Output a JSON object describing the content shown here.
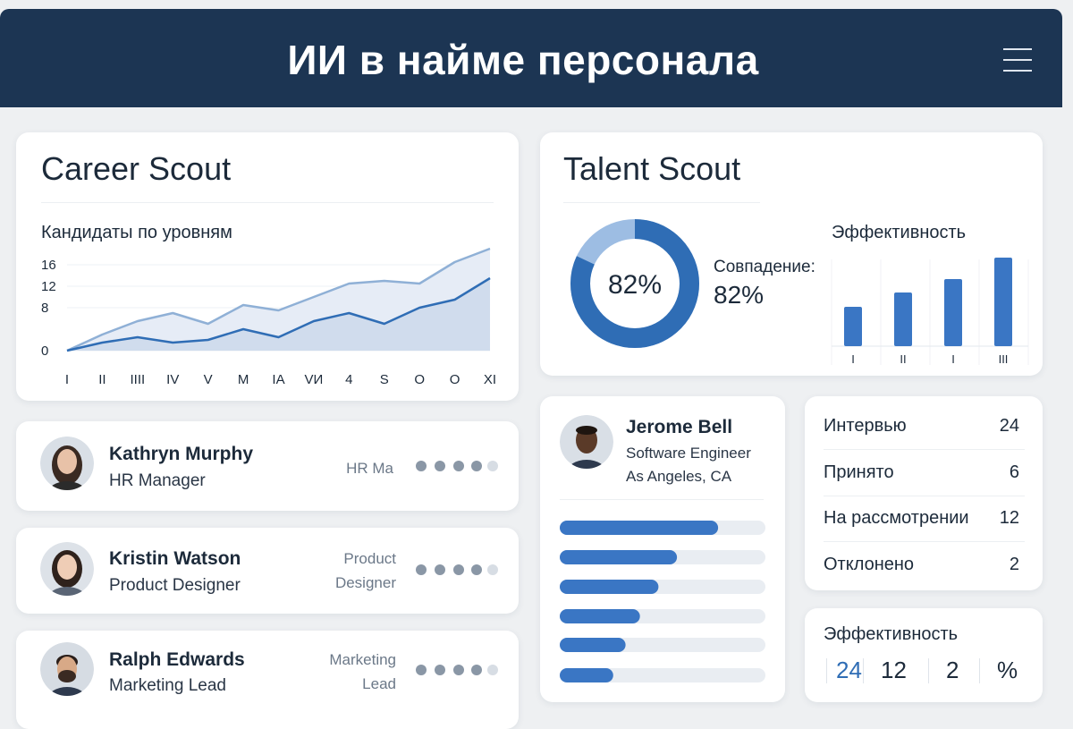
{
  "header": {
    "title": "ИИ в найме персонала"
  },
  "career_scout": {
    "title": "Career Scout",
    "chart": {
      "type": "line",
      "title": "Кандидаты по уровням",
      "categories": [
        "I",
        "II",
        "IIII",
        "IV",
        "V",
        "M",
        "IA",
        "VИ",
        "4",
        "S",
        "O",
        "O",
        "XI"
      ],
      "series": [
        {
          "color": "#8fb0d6",
          "values": [
            0,
            3,
            5.5,
            7,
            5,
            8.5,
            7.5,
            10,
            12.5,
            13,
            12.5,
            16.5,
            19
          ]
        },
        {
          "color": "#2f6db5",
          "values": [
            0,
            1.5,
            2.5,
            1.5,
            2,
            4,
            2.5,
            5.5,
            7,
            5,
            8,
            9.5,
            13.5
          ]
        }
      ],
      "ylim": [
        0,
        19
      ],
      "yticks": [
        0,
        8,
        12,
        16
      ]
    }
  },
  "talent_scout": {
    "title": "Talent Scout",
    "donut": {
      "type": "pie",
      "values": [
        82
      ],
      "value_labels": [
        "82%"
      ],
      "color": "#2f6db5",
      "track_color": "#9dbde3"
    },
    "match": {
      "label": "Совпадение:",
      "value": "82%"
    },
    "efficiency": {
      "type": "bar",
      "title": "Эффективность",
      "categories": [
        "I",
        "II",
        "I",
        "III"
      ],
      "values": [
        44,
        60,
        75,
        99
      ],
      "ylim": [
        0,
        100
      ],
      "color": "#3a76c4"
    }
  },
  "candidates": [
    {
      "name": "Kathryn Murphy",
      "role": "HR Manager",
      "tag": "HR Ma"
    },
    {
      "name": "Kristin Watson",
      "role": "Product Designer",
      "tag": "Product Designer"
    },
    {
      "name": "Ralph Edwards",
      "role": "Marketing Lead",
      "tag": "Marketing Lead"
    }
  ],
  "profile": {
    "name": "Jerome Bell",
    "title": "Software Engineer",
    "location": "As Angeles, CA",
    "skills": {
      "type": "bar",
      "values": [
        77,
        57,
        48,
        39,
        32,
        26
      ],
      "xlim": [
        0,
        100
      ],
      "color": "#3a76c4"
    }
  },
  "stats": {
    "rows": [
      [
        "Интервью",
        24
      ],
      [
        "Принято",
        6
      ],
      [
        "На рассмотрении",
        12
      ],
      [
        "Отклонено",
        2
      ]
    ]
  },
  "efficiency_card": {
    "title": "Эффективность",
    "items": [
      24,
      12,
      2,
      "%"
    ]
  }
}
